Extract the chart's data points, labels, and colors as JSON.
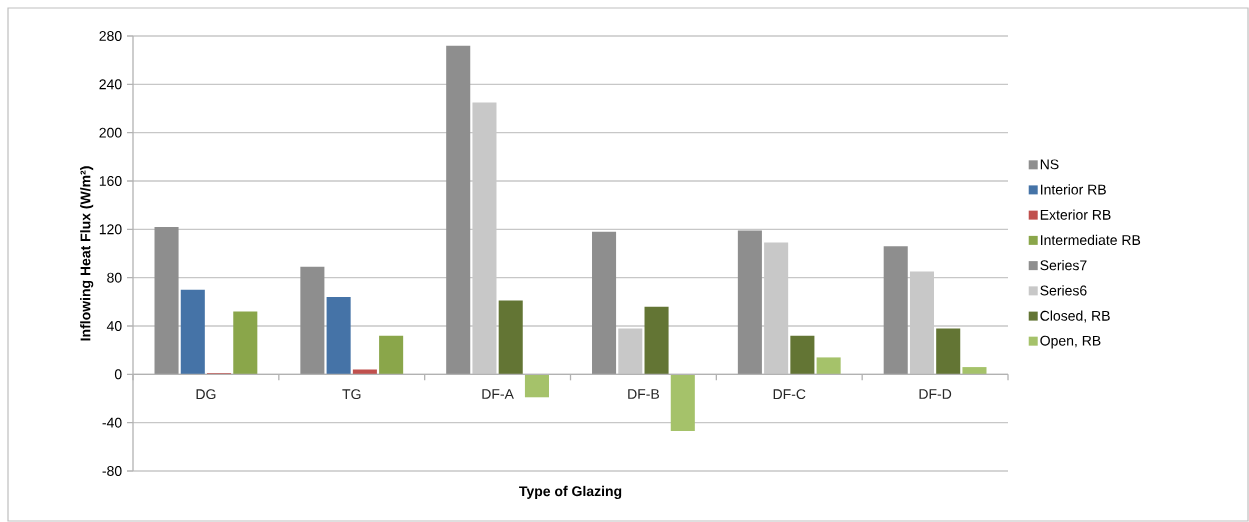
{
  "chart_data": {
    "type": "bar",
    "xlabel": "Type of Glazing",
    "ylabel": "Inflowing Heat Flux (W/m²)",
    "categories": [
      "DG",
      "TG",
      "DF-A",
      "DF-B",
      "DF-C",
      "DF-D"
    ],
    "series": [
      {
        "name": "NS",
        "color": "#8e8e8e",
        "values": [
          122,
          89,
          null,
          null,
          null,
          null
        ]
      },
      {
        "name": "Interior RB",
        "color": "#4573a7",
        "values": [
          70,
          64,
          null,
          null,
          null,
          null
        ]
      },
      {
        "name": "Exterior RB",
        "color": "#c0504d",
        "values": [
          1,
          4,
          null,
          null,
          null,
          null
        ]
      },
      {
        "name": "Intermediate RB",
        "color": "#8aa64a",
        "values": [
          52,
          32,
          null,
          null,
          null,
          null
        ]
      },
      {
        "name": "Series7",
        "color": "#8e8e8e",
        "values": [
          null,
          null,
          272,
          118,
          119,
          106
        ]
      },
      {
        "name": "Series6",
        "color": "#c8c8c8",
        "values": [
          null,
          null,
          225,
          38,
          109,
          85
        ]
      },
      {
        "name": "Closed, RB",
        "color": "#637534",
        "values": [
          null,
          null,
          61,
          56,
          32,
          38
        ]
      },
      {
        "name": "Open, RB",
        "color": "#a5c26a",
        "values": [
          null,
          null,
          -19,
          -47,
          14,
          6
        ]
      }
    ],
    "ylim": [
      -80,
      280
    ],
    "yticks": [
      -80,
      -40,
      0,
      40,
      80,
      120,
      160,
      200,
      240,
      280
    ],
    "grid": "y",
    "legend": "right"
  }
}
